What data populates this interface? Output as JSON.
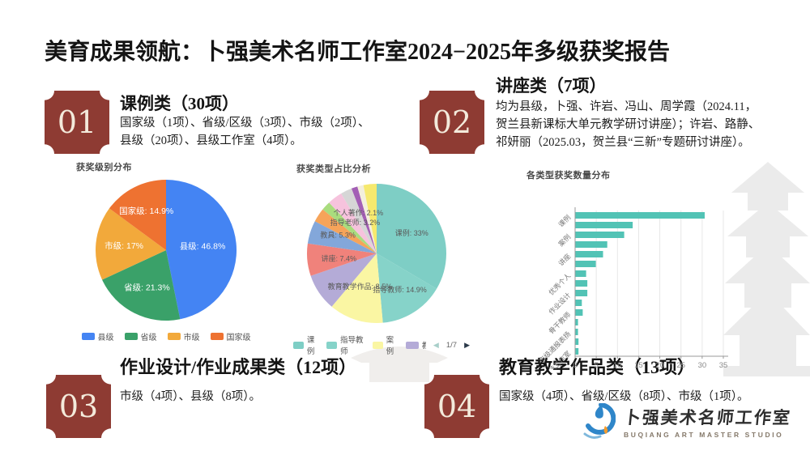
{
  "slide": {
    "title": "美育成果领航：卜强美术名师工作室2024−2025年多级获奖报告",
    "accent_color": "#8E3B33",
    "sections": [
      {
        "number": "01",
        "heading": "课例类（30项）",
        "body": "国家级（1项）、省级/区级（3项）、市级（2项）、\n县级（20项）、县级工作室（4项）。"
      },
      {
        "number": "02",
        "heading": "讲座类（7项）",
        "body": "均为县级，卜强、许岩、冯山、周学霞（2024.11，\n贺兰县新课标大单元教学研讨讲座）；许岩、路静、\n祁妍丽（2025.03，贺兰县“三新”专题研讨讲座）。"
      },
      {
        "number": "03",
        "heading": "作业设计/作业成果类（12项）",
        "body": "市级（4项）、县级（8项）。"
      },
      {
        "number": "04",
        "heading": "教育教学作品类（13项）",
        "body": "国家级（4项）、省级/区级（8项）、市级（1项）。"
      }
    ],
    "logo": {
      "name_cn": "卜强美术名师工作室",
      "name_en": "BUQIANG ART MASTER STUDIO",
      "mark_blue": "#2F86C9",
      "mark_light_blue": "#7FB8DC",
      "mark_orange": "#F49B2D"
    }
  },
  "chart_data": [
    {
      "type": "pie",
      "title": "获奖级别分布",
      "label_color": "#ffffff",
      "slices": [
        {
          "name": "县级",
          "value": 46.8,
          "color": "#4484F3",
          "label": "县级: 46.8%",
          "lr": 0.52
        },
        {
          "name": "省级",
          "value": 21.3,
          "color": "#3AA169",
          "label": "省级: 21.3%",
          "lr": 0.6
        },
        {
          "name": "市级",
          "value": 17.0,
          "color": "#F2A93B",
          "label": "市级: 17%",
          "lr": 0.6
        },
        {
          "name": "国家级",
          "value": 14.9,
          "color": "#EE7231",
          "label": "国家级: 14.9%",
          "lr": 0.62
        }
      ],
      "legend": [
        {
          "label": "县级",
          "color": "#4484F3"
        },
        {
          "label": "省级",
          "color": "#3AA169"
        },
        {
          "label": "市级",
          "color": "#F2A93B"
        },
        {
          "label": "国家级",
          "color": "#EE7231"
        }
      ]
    },
    {
      "type": "pie",
      "title": "获奖类型占比分析",
      "label_color": "#5a5a5a",
      "slices": [
        {
          "name": "课例",
          "value": 33.0,
          "color": "#7ECEC5",
          "label": "课例: 33%",
          "lr": 0.58,
          "anchor": "middle"
        },
        {
          "name": "指导教师",
          "value": 14.9,
          "color": "#86D3C9",
          "label": "指导教师: 14.9%",
          "lr": 0.62,
          "anchor": "middle"
        },
        {
          "name": "案例",
          "value": 12.4,
          "color": "#FAF6A3"
        },
        {
          "name": "教育教学作品",
          "value": 8.5,
          "color": "#B4ABD7",
          "label": "教育教学作品: 8.5%",
          "lr": 0.85,
          "anchor": "start"
        },
        {
          "name": "讲座",
          "value": 7.4,
          "color": "#F0827B",
          "label": "讲座: 7.4%",
          "lr": 0.8,
          "anchor": "start"
        },
        {
          "name": "教具",
          "value": 5.3,
          "color": "#83A7DA",
          "label": "教具: 5.3%",
          "lr": 0.85,
          "anchor": "start"
        },
        {
          "name": "指导老师",
          "value": 3.2,
          "color": "#F6A45A",
          "label": "指导老师: 3.2%",
          "lr": 0.8,
          "anchor": "start"
        },
        {
          "name": "个人著作",
          "value": 2.1,
          "color": "#A9DC7E",
          "label": "个人著作: 2.1%",
          "lr": 0.85,
          "anchor": "start"
        },
        {
          "name": "",
          "value": 3.4,
          "color": "#F6C3DD"
        },
        {
          "name": "",
          "value": 2.6,
          "color": "#D6D6D6"
        },
        {
          "name": "",
          "value": 1.4,
          "color": "#A35FB5"
        },
        {
          "name": "",
          "value": 1.4,
          "color": "#F3EFDC"
        },
        {
          "name": "",
          "value": 3.0,
          "color": "#F6E96E"
        }
      ],
      "legend": [
        {
          "label": "课例",
          "color": "#7ECEC5"
        },
        {
          "label": "指导教师",
          "color": "#86D3C9"
        },
        {
          "label": "案例",
          "color": "#FAF6A3"
        },
        {
          "label": "教育教学作品",
          "color": "#B4ABD7",
          "clipped": true
        }
      ],
      "pagination": {
        "prev": "◀",
        "page": "1/7",
        "next": "▶"
      }
    },
    {
      "type": "bar",
      "title": "各类型获奖数量分布",
      "orientation": "horizontal",
      "bar_color": "#52C3B5",
      "xlim": [
        0,
        35
      ],
      "xticks": [
        0,
        5,
        10,
        15,
        20,
        25,
        30,
        35
      ],
      "values": [
        30.5,
        13.5,
        11.5,
        7.5,
        6.5,
        4.8,
        2.5,
        2.8,
        2.8,
        1.5,
        1.7,
        0.6,
        0.6,
        0.7,
        0.7
      ],
      "visible_category_labels": [
        "课例",
        "案例",
        "讲座",
        "优秀个人",
        "作业设计",
        "骨干教师",
        "市级通报表扬",
        "十佳工作室"
      ],
      "label_every": 2,
      "grid": true
    }
  ]
}
